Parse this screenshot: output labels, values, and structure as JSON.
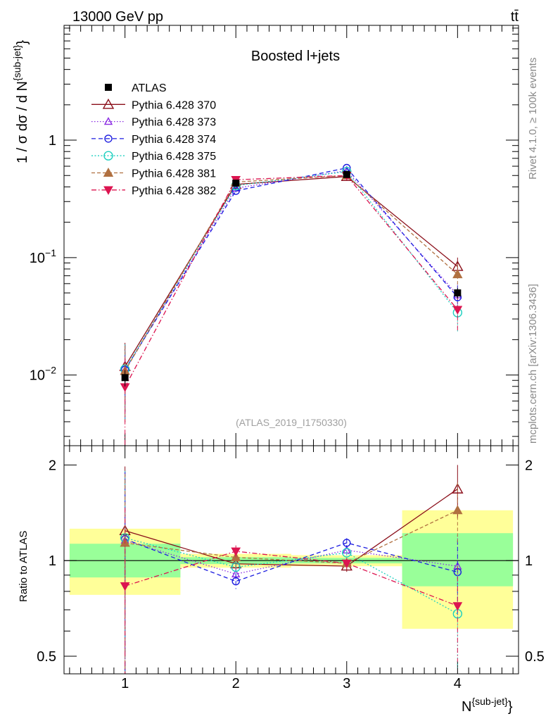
{
  "header": {
    "energy_label": "13000 GeV pp",
    "process_label": "tt̄",
    "side_label_top": "Rivet 4.1.0, ≥ 100k events",
    "side_label_bottom": "mcplots.cern.ch [arXiv:1306.3436]"
  },
  "chart_data": {
    "type": "scatter",
    "title": "Boosted l+jets",
    "watermark": "(ATLAS_2019_I1750330)",
    "xlabel": "N",
    "xlabel_sup": "{sub-jet}",
    "xlabel_suffix": "}",
    "ylabel": "1 / σ dσ / d N",
    "ylabel_sup": "{sub-jet}",
    "ylabel_suffix": "}",
    "ratio_ylabel": "Ratio to ATLAS",
    "x": [
      1,
      2,
      3,
      4
    ],
    "xlim": [
      0.45,
      4.55
    ],
    "ylim": [
      0.0025,
      9.5
    ],
    "yscale": "log",
    "ratio_ylim": [
      0.44,
      2.3
    ],
    "x_tick_labels": [
      "1",
      "2",
      "3",
      "4"
    ],
    "y_tick_labels": [
      {
        "value": 0.01,
        "base": "10",
        "exp": "−2"
      },
      {
        "value": 0.1,
        "base": "10",
        "exp": "−1"
      },
      {
        "value": 1,
        "base": "1",
        "exp": ""
      }
    ],
    "ratio_tick_labels": [
      {
        "value": 0.5,
        "label": "0.5"
      },
      {
        "value": 1,
        "label": "1"
      },
      {
        "value": 2,
        "label": "2"
      }
    ],
    "data": {
      "name": "ATLAS",
      "values": [
        0.0095,
        0.43,
        0.51,
        0.05
      ],
      "errors": [
        0.0015,
        0.01,
        0.01,
        0.005
      ],
      "bands": [
        {
          "xlo": 0.5,
          "xhi": 1.5,
          "inner": [
            0.885,
            1.13
          ],
          "outer": [
            0.78,
            1.26
          ]
        },
        {
          "xlo": 1.5,
          "xhi": 2.5,
          "inner": [
            0.975,
            1.025
          ],
          "outer": [
            0.95,
            1.05
          ]
        },
        {
          "xlo": 2.5,
          "xhi": 3.5,
          "inner": [
            0.98,
            1.02
          ],
          "outer": [
            0.96,
            1.04
          ]
        },
        {
          "xlo": 3.5,
          "xhi": 4.5,
          "inner": [
            0.83,
            1.22
          ],
          "outer": [
            0.61,
            1.44
          ]
        }
      ]
    },
    "series": [
      {
        "name": "Pythia 6.428 370",
        "color": "#8b0f1a",
        "marker": "triangle-open",
        "dash": "",
        "values": [
          0.0118,
          0.42,
          0.49,
          0.084
        ],
        "errors": [
          0.007,
          0.02,
          0.02,
          0.016
        ]
      },
      {
        "name": "Pythia 6.428 373",
        "color": "#8a2be2",
        "marker": "triangle-open-small",
        "dash": "1.5,2.5",
        "values": [
          0.011,
          0.39,
          0.55,
          0.048
        ],
        "errors": [
          0.007,
          0.02,
          0.02,
          0.012
        ]
      },
      {
        "name": "Pythia 6.428 374",
        "color": "#1d1de0",
        "marker": "circle-open",
        "dash": "6,4",
        "values": [
          0.0111,
          0.37,
          0.58,
          0.046
        ],
        "errors": [
          0.007,
          0.02,
          0.02,
          0.012
        ]
      },
      {
        "name": "Pythia 6.428 375",
        "color": "#1fd0c0",
        "marker": "circle-open-large",
        "dash": "2,2.5",
        "values": [
          0.0112,
          0.41,
          0.54,
          0.034
        ],
        "errors": [
          0.007,
          0.02,
          0.02,
          0.011
        ]
      },
      {
        "name": "Pythia 6.428 381",
        "color": "#b07040",
        "marker": "triangle-filled",
        "dash": "5,3",
        "values": [
          0.0108,
          0.44,
          0.5,
          0.072
        ],
        "errors": [
          0.007,
          0.02,
          0.02,
          0.016
        ]
      },
      {
        "name": "Pythia 6.428 382",
        "color": "#dc1450",
        "marker": "triangle-down-filled",
        "dash": "7,3,1.5,3",
        "values": [
          0.0079,
          0.46,
          0.5,
          0.036
        ],
        "errors": [
          0.006,
          0.02,
          0.02,
          0.012
        ]
      }
    ]
  }
}
